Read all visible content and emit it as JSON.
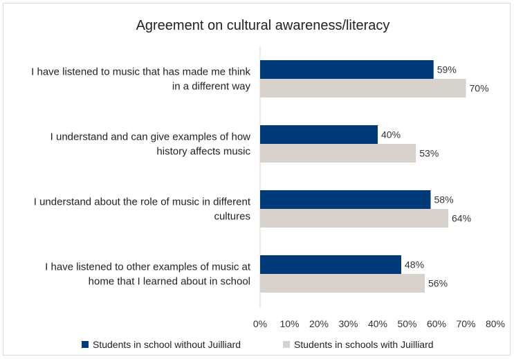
{
  "chart_data": {
    "type": "bar",
    "orientation": "horizontal",
    "title": "Agreement on cultural awareness/literacy",
    "categories": [
      [
        "I have listened to music that has made me think",
        "in a different way"
      ],
      [
        "I understand and can give examples of how",
        "history affects music"
      ],
      [
        "I understand about the role of music in different",
        "cultures"
      ],
      [
        "I have listened to other examples of music at",
        "home that I learned about in school"
      ]
    ],
    "series": [
      {
        "name": "Students in school without Juilliard",
        "color": "#003a78",
        "values": [
          59,
          40,
          58,
          48
        ],
        "labels": [
          "59%",
          "40%",
          "58%",
          "48%"
        ]
      },
      {
        "name": "Students in schools with Juilliard",
        "color": "#d7d3cc",
        "values": [
          70,
          53,
          64,
          56
        ],
        "labels": [
          "70%",
          "53%",
          "64%",
          "56%"
        ]
      }
    ],
    "xlim": [
      0,
      80
    ],
    "xticks": [
      "0%",
      "10%",
      "20%",
      "30%",
      "40%",
      "50%",
      "60%",
      "70%",
      "80%"
    ],
    "grid": false,
    "legend_position": "bottom"
  }
}
